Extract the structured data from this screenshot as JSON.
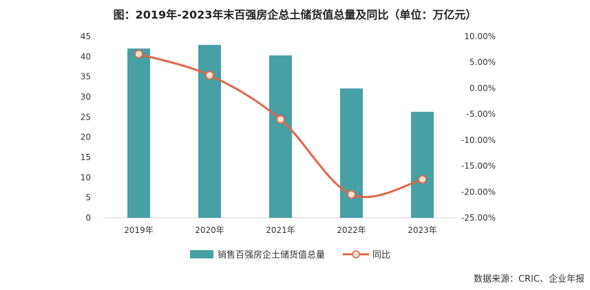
{
  "chart_data": {
    "type": "bar+line",
    "title": "图：2019年-2023年末百强房企总土储货值总量及同比（单位：万亿元）",
    "categories": [
      "2019年",
      "2020年",
      "2021年",
      "2022年",
      "2023年"
    ],
    "series": [
      {
        "name": "销售百强房企土储货值总量",
        "type": "bar",
        "axis": "left",
        "values": [
          42.0,
          42.9,
          40.3,
          32.1,
          26.3
        ]
      },
      {
        "name": "同比",
        "type": "line",
        "axis": "right",
        "values": [
          6.6,
          2.5,
          -6.0,
          -20.5,
          -17.6
        ]
      }
    ],
    "left_axis": {
      "min": 0,
      "max": 45,
      "ticks": [
        "0",
        "5",
        "10",
        "15",
        "20",
        "25",
        "30",
        "35",
        "40",
        "45"
      ]
    },
    "right_axis": {
      "min": -25,
      "max": 10,
      "ticks": [
        "-25.00%",
        "-20.00%",
        "-15.00%",
        "-10.00%",
        "-5.00%",
        "0.00%",
        "5.00%",
        "10.00%"
      ]
    },
    "legend_placement": "bottom",
    "colors": {
      "bar": "#46a0a4",
      "line": "#e0654a",
      "marker_fill": "#fde2d8"
    }
  },
  "source": "数据来源：CRIC、企业年报"
}
